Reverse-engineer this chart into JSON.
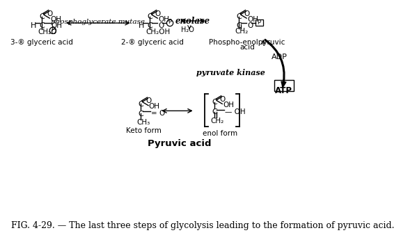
{
  "bg_color": "#ffffff",
  "caption": "FIG. 4-29. — The last three steps of glycolysis leading to the formation of pyruvic acid.",
  "caption_fontsize": 9.0,
  "enzyme1": "phosphoglycerate mutase",
  "enzyme2": "enolase",
  "enzyme3": "pyruvate kinase",
  "label1": "3-® glyceric acid",
  "label2": "2-® glyceric acid",
  "label3_1": "Phospho-enolpyruvic",
  "label3_2": "acid",
  "label4": "Keto form",
  "label5": "enol form",
  "label6": "Pyruvic acid",
  "adp": "ADP",
  "atp": "ATP",
  "h2o": "H₂O"
}
